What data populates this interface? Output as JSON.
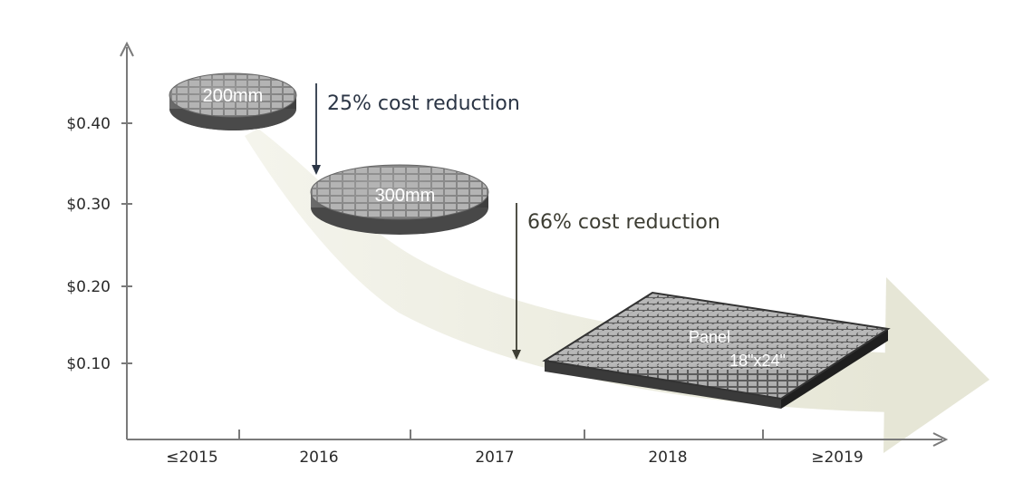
{
  "y_axis": {
    "ticks": [
      "$0.40",
      "$0.30",
      "$0.20",
      "$0.10"
    ]
  },
  "x_axis": {
    "ticks": [
      "≤2015",
      "2016",
      "2017",
      "2018",
      "≥2019"
    ]
  },
  "annotations": {
    "first": "25% cost reduction",
    "second": "66% cost reduction"
  },
  "wafers": {
    "small": "200mm",
    "large": "300mm"
  },
  "panel": {
    "line1": "Panel",
    "line2": "18\"x24\""
  },
  "colors": {
    "axis": "#7a7a7a",
    "trend_arrow": "#ecece0",
    "wafer_top": "#8a8a8a",
    "wafer_side": "#555555",
    "die": "#a9a9a9",
    "panel_top": "#5f5f5f",
    "panel_side": "#262626"
  }
}
